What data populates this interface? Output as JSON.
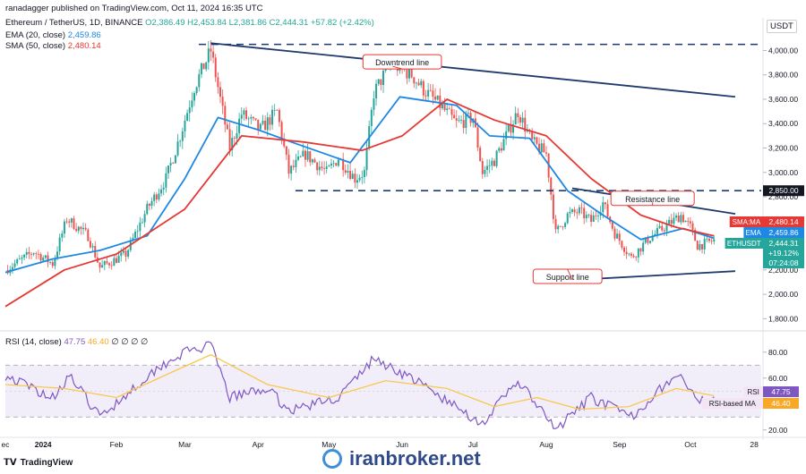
{
  "header": {
    "published": "ranadagger published on TradingView.com, Oct 11, 2024 16:35 UTC",
    "symbol_line": "Ethereum / TetherUS, 1D, BINANCE",
    "ohlc": "O2,386.49  H2,453.84  L2,381.86  C2,444.31  +57.82 (+2.42%)",
    "ema_label": "EMA (20, close)",
    "ema_value": "2,459.86",
    "sma_label": "SMA (50, close)",
    "sma_value": "2,480.14",
    "rsi_label": "RSI (14, close)",
    "rsi_value": "47.75",
    "rsi_ma_value": "46.40",
    "rsi_extra": "∅ ∅ ∅ ∅"
  },
  "currency": "USDT",
  "footer": {
    "tradingview": "TradingView",
    "watermark": "iranbroker.net"
  },
  "colors": {
    "up": "#26a69a",
    "down": "#ef5350",
    "ema": "#1e88e5",
    "sma": "#e53935",
    "rsi": "#7e57c2",
    "rsi_ma": "#f9c74f",
    "annotation": "#e53935",
    "trendline": "#1f3a6e"
  },
  "chart_data": [
    {
      "type": "candlestick",
      "title": "Ethereum / TetherUS, 1D, BINANCE",
      "ylabel": "USDT",
      "ylim": [
        1700,
        4150
      ],
      "y_ticks": [
        1800,
        2000,
        2200,
        2400,
        2600,
        2800,
        3000,
        3200,
        3400,
        3600,
        3800,
        4000
      ],
      "y_tick_labels": [
        "1,800.00",
        "2,000.00",
        "2,200.00",
        "2,400.00",
        "2,600.00",
        "2,800.00",
        "3,000.00",
        "3,200.00",
        "3,400.00",
        "3,600.00",
        "3,800.00",
        "4,000.00"
      ],
      "x_tick_labels": [
        "ec",
        "2024",
        "Feb",
        "Mar",
        "Apr",
        "May",
        "Jun",
        "Jul",
        "Aug",
        "Sep",
        "Oct",
        "28"
      ],
      "x_tick_dates": [
        "2023-12-16",
        "2024-01-01",
        "2024-02-01",
        "2024-03-01",
        "2024-04-01",
        "2024-05-01",
        "2024-06-01",
        "2024-07-01",
        "2024-08-01",
        "2024-09-01",
        "2024-10-01",
        "2024-10-28"
      ],
      "x_range": [
        "2023-12-16",
        "2024-10-31"
      ],
      "price_waypoints": [
        [
          "2023-12-16",
          2200
        ],
        [
          "2023-12-28",
          2350
        ],
        [
          "2024-01-05",
          2250
        ],
        [
          "2024-01-11",
          2620
        ],
        [
          "2024-01-20",
          2480
        ],
        [
          "2024-01-25",
          2220
        ],
        [
          "2024-02-05",
          2330
        ],
        [
          "2024-02-14",
          2700
        ],
        [
          "2024-02-22",
          2950
        ],
        [
          "2024-02-28",
          3300
        ],
        [
          "2024-03-05",
          3700
        ],
        [
          "2024-03-12",
          4000
        ],
        [
          "2024-03-17",
          3500
        ],
        [
          "2024-03-20",
          3200
        ],
        [
          "2024-03-25",
          3480
        ],
        [
          "2024-04-02",
          3350
        ],
        [
          "2024-04-09",
          3500
        ],
        [
          "2024-04-14",
          3000
        ],
        [
          "2024-04-21",
          3150
        ],
        [
          "2024-04-30",
          3000
        ],
        [
          "2024-05-05",
          3120
        ],
        [
          "2024-05-12",
          2950
        ],
        [
          "2024-05-16",
          3000
        ],
        [
          "2024-05-20",
          3650
        ],
        [
          "2024-05-27",
          3900
        ],
        [
          "2024-06-05",
          3800
        ],
        [
          "2024-06-10",
          3680
        ],
        [
          "2024-06-17",
          3550
        ],
        [
          "2024-06-24",
          3400
        ],
        [
          "2024-07-01",
          3450
        ],
        [
          "2024-07-05",
          3000
        ],
        [
          "2024-07-10",
          3100
        ],
        [
          "2024-07-20",
          3500
        ],
        [
          "2024-07-26",
          3250
        ],
        [
          "2024-08-01",
          3150
        ],
        [
          "2024-08-05",
          2500
        ],
        [
          "2024-08-10",
          2650
        ],
        [
          "2024-08-15",
          2680
        ],
        [
          "2024-08-20",
          2600
        ],
        [
          "2024-08-25",
          2750
        ],
        [
          "2024-08-30",
          2500
        ],
        [
          "2024-09-06",
          2300
        ],
        [
          "2024-09-13",
          2450
        ],
        [
          "2024-09-20",
          2550
        ],
        [
          "2024-09-27",
          2650
        ],
        [
          "2024-10-01",
          2550
        ],
        [
          "2024-10-04",
          2400
        ],
        [
          "2024-10-08",
          2420
        ],
        [
          "2024-10-11",
          2444
        ]
      ],
      "ema20_waypoints": [
        [
          "2023-12-16",
          2180
        ],
        [
          "2024-01-05",
          2290
        ],
        [
          "2024-01-25",
          2360
        ],
        [
          "2024-02-14",
          2480
        ],
        [
          "2024-03-01",
          2950
        ],
        [
          "2024-03-15",
          3450
        ],
        [
          "2024-04-01",
          3350
        ],
        [
          "2024-04-15",
          3250
        ],
        [
          "2024-05-10",
          3080
        ],
        [
          "2024-05-31",
          3620
        ],
        [
          "2024-06-24",
          3550
        ],
        [
          "2024-07-08",
          3300
        ],
        [
          "2024-07-25",
          3280
        ],
        [
          "2024-08-10",
          2850
        ],
        [
          "2024-08-25",
          2650
        ],
        [
          "2024-09-10",
          2450
        ],
        [
          "2024-09-28",
          2540
        ],
        [
          "2024-10-11",
          2460
        ]
      ],
      "sma50_waypoints": [
        [
          "2023-12-16",
          1900
        ],
        [
          "2024-01-10",
          2200
        ],
        [
          "2024-02-01",
          2330
        ],
        [
          "2024-03-01",
          2700
        ],
        [
          "2024-03-25",
          3300
        ],
        [
          "2024-04-20",
          3250
        ],
        [
          "2024-05-15",
          3180
        ],
        [
          "2024-06-01",
          3300
        ],
        [
          "2024-06-20",
          3600
        ],
        [
          "2024-07-10",
          3430
        ],
        [
          "2024-08-01",
          3300
        ],
        [
          "2024-08-20",
          2950
        ],
        [
          "2024-09-10",
          2650
        ],
        [
          "2024-09-25",
          2550
        ],
        [
          "2024-10-11",
          2480
        ]
      ],
      "horizontal_levels": [
        {
          "label": "",
          "value": 4050
        },
        {
          "label": "2,850.00",
          "value": 2850
        }
      ],
      "trendlines": [
        {
          "label": "Downtrend line",
          "from": [
            "2024-03-12",
            4060
          ],
          "to": [
            "2024-10-20",
            3620
          ]
        },
        {
          "label": "Resistance line",
          "from": [
            "2024-08-12",
            2870
          ],
          "to": [
            "2024-10-20",
            2660
          ]
        },
        {
          "label": "Support line",
          "from": [
            "2024-08-05",
            2110
          ],
          "to": [
            "2024-10-20",
            2190
          ]
        }
      ],
      "annotations": [
        {
          "text": "Downtrend line",
          "anchor": [
            "2024-06-01",
            3900
          ]
        },
        {
          "text": "Resistance line",
          "anchor": [
            "2024-09-15",
            2780
          ]
        },
        {
          "text": "Support line",
          "anchor": [
            "2024-08-10",
            2140
          ]
        }
      ],
      "price_labels": [
        {
          "name": "SMA:MA",
          "value": "2,480.14",
          "color": "#e53935"
        },
        {
          "name": "EMA",
          "value": "2,459.86",
          "color": "#1e88e5"
        },
        {
          "name": "ETHUSDT",
          "value": "2,444.31",
          "extra": [
            "+19.12%",
            "07:24:08"
          ],
          "color": "#26a69a"
        },
        {
          "name": "",
          "value": "2,850.00",
          "color": "#131722"
        }
      ]
    },
    {
      "type": "line",
      "title": "RSI (14, close)",
      "ylim": [
        15,
        95
      ],
      "y_ticks": [
        20,
        40,
        60,
        80
      ],
      "y_tick_labels": [
        "20.00",
        "40.00",
        "60.00",
        "80.00"
      ],
      "band": [
        30,
        70
      ],
      "series": [
        {
          "name": "RSI",
          "value": "47.75",
          "waypoints": [
            [
              "2023-12-16",
              62
            ],
            [
              "2024-01-05",
              45
            ],
            [
              "2024-01-12",
              62
            ],
            [
              "2024-01-25",
              30
            ],
            [
              "2024-02-08",
              52
            ],
            [
              "2024-02-20",
              70
            ],
            [
              "2024-03-01",
              80
            ],
            [
              "2024-03-12",
              85
            ],
            [
              "2024-03-20",
              45
            ],
            [
              "2024-04-05",
              52
            ],
            [
              "2024-04-14",
              35
            ],
            [
              "2024-05-05",
              45
            ],
            [
              "2024-05-20",
              75
            ],
            [
              "2024-06-05",
              60
            ],
            [
              "2024-06-20",
              42
            ],
            [
              "2024-07-05",
              25
            ],
            [
              "2024-07-20",
              58
            ],
            [
              "2024-08-05",
              20
            ],
            [
              "2024-08-20",
              45
            ],
            [
              "2024-09-06",
              30
            ],
            [
              "2024-09-20",
              55
            ],
            [
              "2024-09-27",
              62
            ],
            [
              "2024-10-04",
              40
            ],
            [
              "2024-10-11",
              47.75
            ]
          ]
        },
        {
          "name": "RSI-based MA",
          "value": "46.40",
          "waypoints": [
            [
              "2023-12-16",
              55
            ],
            [
              "2024-01-10",
              52
            ],
            [
              "2024-02-01",
              45
            ],
            [
              "2024-02-25",
              65
            ],
            [
              "2024-03-12",
              78
            ],
            [
              "2024-04-05",
              55
            ],
            [
              "2024-05-01",
              45
            ],
            [
              "2024-05-25",
              58
            ],
            [
              "2024-06-20",
              52
            ],
            [
              "2024-07-10",
              38
            ],
            [
              "2024-07-28",
              45
            ],
            [
              "2024-08-15",
              36
            ],
            [
              "2024-09-05",
              38
            ],
            [
              "2024-09-25",
              52
            ],
            [
              "2024-10-11",
              46.4
            ]
          ]
        }
      ]
    }
  ]
}
